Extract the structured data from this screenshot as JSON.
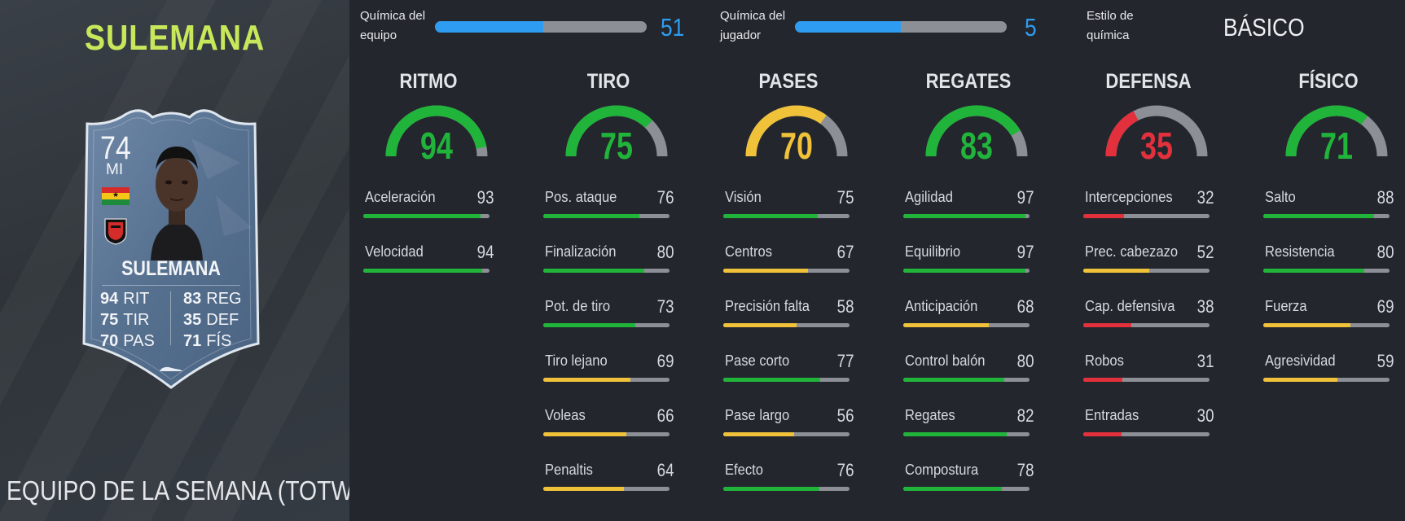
{
  "colors": {
    "green": "#20b53a",
    "yellow": "#f0c23a",
    "red": "#e3303d",
    "gray": "#8c9096",
    "blue": "#2e9cf0",
    "lime": "#c7e85a"
  },
  "player": {
    "heading": "SULEMANA",
    "footer_title": "EQUIPO DE LA SEMANA (TOTW)"
  },
  "card": {
    "rating": "74",
    "position": "MI",
    "name": "SULEMANA",
    "stats_left": [
      {
        "value": "94",
        "label": "RIT"
      },
      {
        "value": "75",
        "label": "TIR"
      },
      {
        "value": "70",
        "label": "PAS"
      }
    ],
    "stats_right": [
      {
        "value": "83",
        "label": "REG"
      },
      {
        "value": "35",
        "label": "DEF"
      },
      {
        "value": "71",
        "label": "FÍS"
      }
    ],
    "flag_icon": "ghana-flag-icon",
    "club_icon": "club-crest-icon"
  },
  "chemistry": {
    "team": {
      "label_line1": "Química del",
      "label_line2": "equipo",
      "value": "51",
      "fraction": 0.51
    },
    "player": {
      "label_line1": "Química del",
      "label_line2": "jugador",
      "value": "5",
      "fraction": 0.5
    },
    "style": {
      "label_line1": "Estilo de",
      "label_line2": "química",
      "value": "BÁSICO"
    }
  },
  "categories": [
    {
      "title": "RITMO",
      "value": "94",
      "color": "green",
      "fraction": 0.94,
      "subs": [
        {
          "name": "Aceleración",
          "value": "93",
          "fraction": 0.93,
          "color": "green"
        },
        {
          "name": "Velocidad",
          "value": "94",
          "fraction": 0.94,
          "color": "green"
        }
      ]
    },
    {
      "title": "TIRO",
      "value": "75",
      "color": "green",
      "fraction": 0.75,
      "subs": [
        {
          "name": "Pos. ataque",
          "value": "76",
          "fraction": 0.76,
          "color": "green"
        },
        {
          "name": "Finalización",
          "value": "80",
          "fraction": 0.8,
          "color": "green"
        },
        {
          "name": "Pot. de tiro",
          "value": "73",
          "fraction": 0.73,
          "color": "green"
        },
        {
          "name": "Tiro lejano",
          "value": "69",
          "fraction": 0.69,
          "color": "yellow"
        },
        {
          "name": "Voleas",
          "value": "66",
          "fraction": 0.66,
          "color": "yellow"
        },
        {
          "name": "Penaltis",
          "value": "64",
          "fraction": 0.64,
          "color": "yellow"
        }
      ]
    },
    {
      "title": "PASES",
      "value": "70",
      "color": "yellow",
      "fraction": 0.7,
      "subs": [
        {
          "name": "Visión",
          "value": "75",
          "fraction": 0.75,
          "color": "green"
        },
        {
          "name": "Centros",
          "value": "67",
          "fraction": 0.67,
          "color": "yellow"
        },
        {
          "name": "Precisión falta",
          "value": "58",
          "fraction": 0.58,
          "color": "yellow"
        },
        {
          "name": "Pase corto",
          "value": "77",
          "fraction": 0.77,
          "color": "green"
        },
        {
          "name": "Pase largo",
          "value": "56",
          "fraction": 0.56,
          "color": "yellow"
        },
        {
          "name": "Efecto",
          "value": "76",
          "fraction": 0.76,
          "color": "green"
        }
      ]
    },
    {
      "title": "REGATES",
      "value": "83",
      "color": "green",
      "fraction": 0.83,
      "subs": [
        {
          "name": "Agilidad",
          "value": "97",
          "fraction": 0.97,
          "color": "green"
        },
        {
          "name": "Equilibrio",
          "value": "97",
          "fraction": 0.97,
          "color": "green"
        },
        {
          "name": "Anticipación",
          "value": "68",
          "fraction": 0.68,
          "color": "yellow"
        },
        {
          "name": "Control balón",
          "value": "80",
          "fraction": 0.8,
          "color": "green"
        },
        {
          "name": "Regates",
          "value": "82",
          "fraction": 0.82,
          "color": "green"
        },
        {
          "name": "Compostura",
          "value": "78",
          "fraction": 0.78,
          "color": "green"
        }
      ]
    },
    {
      "title": "DEFENSA",
      "value": "35",
      "color": "red",
      "fraction": 0.35,
      "subs": [
        {
          "name": "Intercepciones",
          "value": "32",
          "fraction": 0.32,
          "color": "red"
        },
        {
          "name": "Prec. cabezazo",
          "value": "52",
          "fraction": 0.52,
          "color": "yellow"
        },
        {
          "name": "Cap. defensiva",
          "value": "38",
          "fraction": 0.38,
          "color": "red"
        },
        {
          "name": "Robos",
          "value": "31",
          "fraction": 0.31,
          "color": "red"
        },
        {
          "name": "Entradas",
          "value": "30",
          "fraction": 0.3,
          "color": "red"
        }
      ]
    },
    {
      "title": "FÍSICO",
      "value": "71",
      "color": "green",
      "fraction": 0.71,
      "subs": [
        {
          "name": "Salto",
          "value": "88",
          "fraction": 0.88,
          "color": "green"
        },
        {
          "name": "Resistencia",
          "value": "80",
          "fraction": 0.8,
          "color": "green"
        },
        {
          "name": "Fuerza",
          "value": "69",
          "fraction": 0.69,
          "color": "yellow"
        },
        {
          "name": "Agresividad",
          "value": "59",
          "fraction": 0.59,
          "color": "yellow"
        }
      ]
    }
  ]
}
